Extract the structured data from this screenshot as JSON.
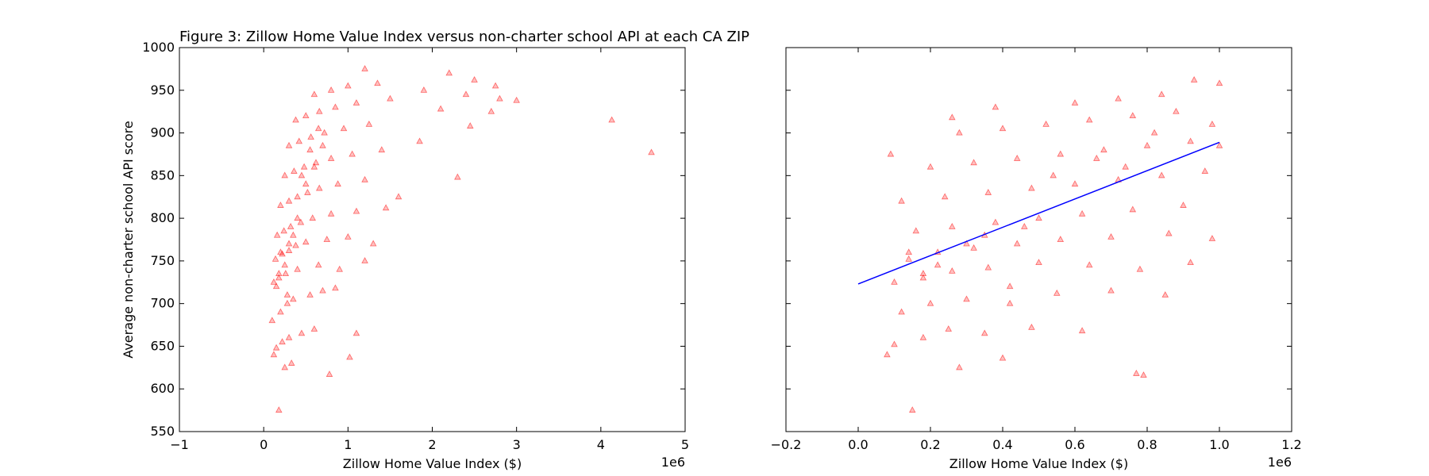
{
  "figure_title": "Figure 3: Zillow Home Value Index versus non-charter school API at each CA ZIP",
  "marker_color": "#ff0000",
  "fit_line_color": "#0000ff",
  "chart_data": [
    {
      "type": "scatter",
      "xlabel": "Zillow Home Value Index ($)",
      "ylabel": "Average non-charter school API score",
      "x_multiplier_label": "1e6",
      "xlim": [
        -1,
        5
      ],
      "ylim": [
        550,
        1000
      ],
      "x_ticks": [
        -1,
        0,
        1,
        2,
        3,
        4,
        5
      ],
      "x_tick_labels": [
        "−1",
        "0",
        "1",
        "2",
        "3",
        "4",
        "5"
      ],
      "y_ticks": [
        550,
        600,
        650,
        700,
        750,
        800,
        850,
        900,
        950,
        1000
      ],
      "y_tick_labels": [
        "550",
        "600",
        "650",
        "700",
        "750",
        "800",
        "850",
        "900",
        "950",
        "1000"
      ],
      "grid": false,
      "marker": "triangle",
      "series": [
        {
          "points": [
            [
              0.18,
              575
            ],
            [
              0.78,
              617
            ],
            [
              1.02,
              637
            ],
            [
              0.25,
              625
            ],
            [
              0.33,
              630
            ],
            [
              0.12,
              640
            ],
            [
              0.15,
              648
            ],
            [
              0.22,
              655
            ],
            [
              0.3,
              660
            ],
            [
              0.45,
              665
            ],
            [
              0.6,
              670
            ],
            [
              1.1,
              665
            ],
            [
              0.1,
              680
            ],
            [
              0.2,
              690
            ],
            [
              0.28,
              700
            ],
            [
              0.35,
              705
            ],
            [
              0.55,
              710
            ],
            [
              0.7,
              715
            ],
            [
              0.85,
              718
            ],
            [
              0.12,
              725
            ],
            [
              0.18,
              730
            ],
            [
              0.26,
              735
            ],
            [
              0.4,
              740
            ],
            [
              0.65,
              745
            ],
            [
              0.9,
              740
            ],
            [
              1.2,
              750
            ],
            [
              0.14,
              752
            ],
            [
              0.22,
              758
            ],
            [
              0.3,
              762
            ],
            [
              0.38,
              768
            ],
            [
              0.5,
              772
            ],
            [
              0.75,
              775
            ],
            [
              1.0,
              778
            ],
            [
              1.3,
              770
            ],
            [
              0.16,
              780
            ],
            [
              0.24,
              785
            ],
            [
              0.32,
              790
            ],
            [
              0.44,
              795
            ],
            [
              0.58,
              800
            ],
            [
              0.8,
              805
            ],
            [
              1.1,
              808
            ],
            [
              1.45,
              812
            ],
            [
              0.2,
              815
            ],
            [
              0.3,
              820
            ],
            [
              0.4,
              825
            ],
            [
              0.52,
              830
            ],
            [
              0.66,
              835
            ],
            [
              0.88,
              840
            ],
            [
              1.2,
              845
            ],
            [
              1.6,
              825
            ],
            [
              0.25,
              850
            ],
            [
              0.36,
              855
            ],
            [
              0.48,
              860
            ],
            [
              0.62,
              865
            ],
            [
              0.8,
              870
            ],
            [
              1.05,
              875
            ],
            [
              1.4,
              880
            ],
            [
              0.3,
              885
            ],
            [
              0.42,
              890
            ],
            [
              0.56,
              895
            ],
            [
              0.72,
              900
            ],
            [
              0.95,
              905
            ],
            [
              1.25,
              910
            ],
            [
              1.85,
              890
            ],
            [
              0.38,
              915
            ],
            [
              0.5,
              920
            ],
            [
              0.66,
              925
            ],
            [
              0.85,
              930
            ],
            [
              1.1,
              935
            ],
            [
              1.5,
              940
            ],
            [
              2.1,
              928
            ],
            [
              0.6,
              945
            ],
            [
              0.8,
              950
            ],
            [
              1.0,
              955
            ],
            [
              1.35,
              958
            ],
            [
              1.9,
              950
            ],
            [
              2.4,
              945
            ],
            [
              2.8,
              940
            ],
            [
              1.2,
              975
            ],
            [
              2.2,
              970
            ],
            [
              2.5,
              962
            ],
            [
              2.75,
              955
            ],
            [
              3.0,
              938
            ],
            [
              4.13,
              915
            ],
            [
              4.6,
              877
            ],
            [
              2.3,
              848
            ],
            [
              2.45,
              908
            ],
            [
              2.7,
              925
            ],
            [
              0.2,
              760
            ],
            [
              0.25,
              745
            ],
            [
              0.3,
              770
            ],
            [
              0.18,
              735
            ],
            [
              0.35,
              780
            ],
            [
              0.28,
              710
            ],
            [
              0.4,
              800
            ],
            [
              0.15,
              720
            ],
            [
              0.45,
              850
            ],
            [
              0.55,
              880
            ],
            [
              0.65,
              905
            ],
            [
              0.5,
              840
            ],
            [
              0.6,
              860
            ],
            [
              0.7,
              885
            ]
          ]
        }
      ]
    },
    {
      "type": "scatter",
      "xlabel": "Zillow Home Value Index ($)",
      "ylabel": "",
      "x_multiplier_label": "1e6",
      "xlim": [
        -0.2,
        1.2
      ],
      "ylim": [
        550,
        1000
      ],
      "x_ticks": [
        -0.2,
        0.0,
        0.2,
        0.4,
        0.6,
        0.8,
        1.0,
        1.2
      ],
      "x_tick_labels": [
        "−0.2",
        "0.0",
        "0.2",
        "0.4",
        "0.6",
        "0.8",
        "1.0",
        "1.2"
      ],
      "y_ticks": [
        550,
        600,
        650,
        700,
        750,
        800,
        850,
        900,
        950,
        1000
      ],
      "grid": false,
      "marker": "triangle",
      "series": [
        {
          "points": [
            [
              0.15,
              575
            ],
            [
              0.77,
              618
            ],
            [
              0.79,
              616
            ],
            [
              0.4,
              636
            ],
            [
              0.28,
              625
            ],
            [
              0.08,
              640
            ],
            [
              0.1,
              652
            ],
            [
              0.18,
              660
            ],
            [
              0.25,
              670
            ],
            [
              0.35,
              665
            ],
            [
              0.48,
              672
            ],
            [
              0.62,
              668
            ],
            [
              0.12,
              690
            ],
            [
              0.2,
              700
            ],
            [
              0.3,
              705
            ],
            [
              0.42,
              700
            ],
            [
              0.55,
              712
            ],
            [
              0.7,
              715
            ],
            [
              0.85,
              710
            ],
            [
              0.1,
              725
            ],
            [
              0.18,
              730
            ],
            [
              0.26,
              738
            ],
            [
              0.36,
              742
            ],
            [
              0.5,
              748
            ],
            [
              0.64,
              745
            ],
            [
              0.78,
              740
            ],
            [
              0.92,
              748
            ],
            [
              0.14,
              752
            ],
            [
              0.22,
              760
            ],
            [
              0.32,
              765
            ],
            [
              0.44,
              770
            ],
            [
              0.56,
              775
            ],
            [
              0.7,
              778
            ],
            [
              0.86,
              782
            ],
            [
              0.98,
              776
            ],
            [
              0.16,
              785
            ],
            [
              0.26,
              790
            ],
            [
              0.38,
              795
            ],
            [
              0.5,
              800
            ],
            [
              0.62,
              805
            ],
            [
              0.76,
              810
            ],
            [
              0.9,
              815
            ],
            [
              0.12,
              820
            ],
            [
              0.24,
              825
            ],
            [
              0.36,
              830
            ],
            [
              0.48,
              835
            ],
            [
              0.6,
              840
            ],
            [
              0.72,
              845
            ],
            [
              0.84,
              850
            ],
            [
              0.96,
              855
            ],
            [
              0.2,
              860
            ],
            [
              0.32,
              865
            ],
            [
              0.44,
              870
            ],
            [
              0.56,
              875
            ],
            [
              0.68,
              880
            ],
            [
              0.8,
              885
            ],
            [
              0.92,
              890
            ],
            [
              0.28,
              900
            ],
            [
              0.4,
              905
            ],
            [
              0.52,
              910
            ],
            [
              0.64,
              915
            ],
            [
              0.76,
              920
            ],
            [
              0.88,
              925
            ],
            [
              0.38,
              930
            ],
            [
              0.6,
              935
            ],
            [
              0.72,
              940
            ],
            [
              0.84,
              945
            ],
            [
              0.93,
              962
            ],
            [
              1.0,
              958
            ],
            [
              0.26,
              918
            ],
            [
              0.09,
              875
            ],
            [
              0.14,
              760
            ],
            [
              0.22,
              745
            ],
            [
              0.3,
              770
            ],
            [
              0.18,
              735
            ],
            [
              0.35,
              780
            ],
            [
              0.42,
              720
            ],
            [
              0.46,
              790
            ],
            [
              0.54,
              850
            ],
            [
              0.66,
              870
            ],
            [
              0.74,
              860
            ],
            [
              0.82,
              900
            ],
            [
              0.98,
              910
            ],
            [
              1.0,
              885
            ]
          ]
        }
      ],
      "fit_line": {
        "x": [
          0.0,
          1.0
        ],
        "y": [
          723,
          889
        ]
      }
    }
  ]
}
